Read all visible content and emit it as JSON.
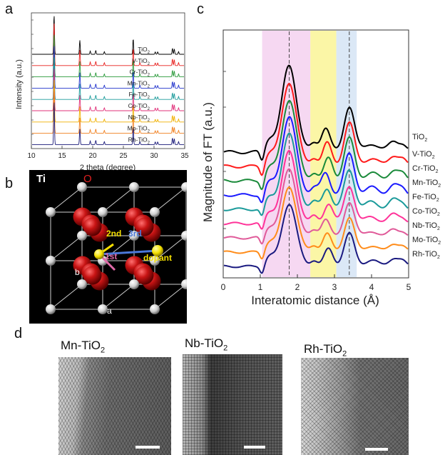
{
  "panels": {
    "a": "a",
    "b": "b",
    "c": "c",
    "d": "d"
  },
  "chart_data": [
    {
      "panel": "a",
      "type": "line",
      "xlabel": "2 theta (degree)",
      "ylabel": "Intensity (a.u.)",
      "xlim": [
        10,
        35
      ],
      "xticks": [
        "10",
        "15",
        "20",
        "25",
        "30",
        "35"
      ],
      "peaks_2theta": [
        13.7,
        17.9,
        19.6,
        20.5,
        21.9,
        26.6,
        27.7,
        30.2,
        30.6,
        33.0,
        33.3,
        34.0
      ],
      "series": [
        {
          "name": "TiO2",
          "color": "#000000"
        },
        {
          "name": "V-TiO2",
          "color": "#e8201e"
        },
        {
          "name": "Cr-TiO2",
          "color": "#2a9a3a"
        },
        {
          "name": "Mn-TiO2",
          "color": "#2234cc"
        },
        {
          "name": "Fe-TiO2",
          "color": "#1a9a9a"
        },
        {
          "name": "Co-TiO2",
          "color": "#e0307a"
        },
        {
          "name": "Nb-TiO2",
          "color": "#f0b000"
        },
        {
          "name": "Mo-TiO2",
          "color": "#f08020"
        },
        {
          "name": "Rh-TiO2",
          "color": "#1a1a7a"
        }
      ]
    },
    {
      "panel": "c",
      "type": "line",
      "xlabel": "Interatomic distance (Å)",
      "ylabel": "Magnitude of FT (a.u.)",
      "xlim": [
        0,
        5
      ],
      "xticks": [
        "0",
        "1",
        "2",
        "3",
        "4",
        "5"
      ],
      "shaded_regions": [
        {
          "range": [
            1.05,
            2.35
          ],
          "color": "#f6d8f2"
        },
        {
          "range": [
            2.35,
            3.05
          ],
          "color": "#fbf6a6"
        },
        {
          "range": [
            3.05,
            3.6
          ],
          "color": "#dbe8f6"
        }
      ],
      "dashed_lines_x": [
        1.78,
        3.4
      ],
      "series": [
        {
          "name": "TiO2",
          "color": "#000000"
        },
        {
          "name": "V-TiO2",
          "color": "#ff1a1a"
        },
        {
          "name": "Cr-TiO2",
          "color": "#1a8a3a"
        },
        {
          "name": "Mn-TiO2",
          "color": "#1a1aff"
        },
        {
          "name": "Fe-TiO2",
          "color": "#1a9a9a"
        },
        {
          "name": "Co-TiO2",
          "color": "#ff3399"
        },
        {
          "name": "Nb-TiO2",
          "color": "#e05a99"
        },
        {
          "name": "Mo-TiO2",
          "color": "#ff8c1a"
        },
        {
          "name": "Rh-TiO2",
          "color": "#1a1a80"
        }
      ]
    }
  ],
  "structure": {
    "ti_label": "Ti",
    "o_label": "O",
    "shell_1": "1st",
    "shell_2": "2nd",
    "shell_3": "3rd",
    "dopant": "dopant",
    "axis_a": "a",
    "axis_b": "b"
  },
  "tem": {
    "images": [
      {
        "label": "Mn-TiO",
        "sub": "2"
      },
      {
        "label": "Nb-TiO",
        "sub": "2"
      },
      {
        "label": "Rh-TiO",
        "sub": "2"
      }
    ]
  }
}
